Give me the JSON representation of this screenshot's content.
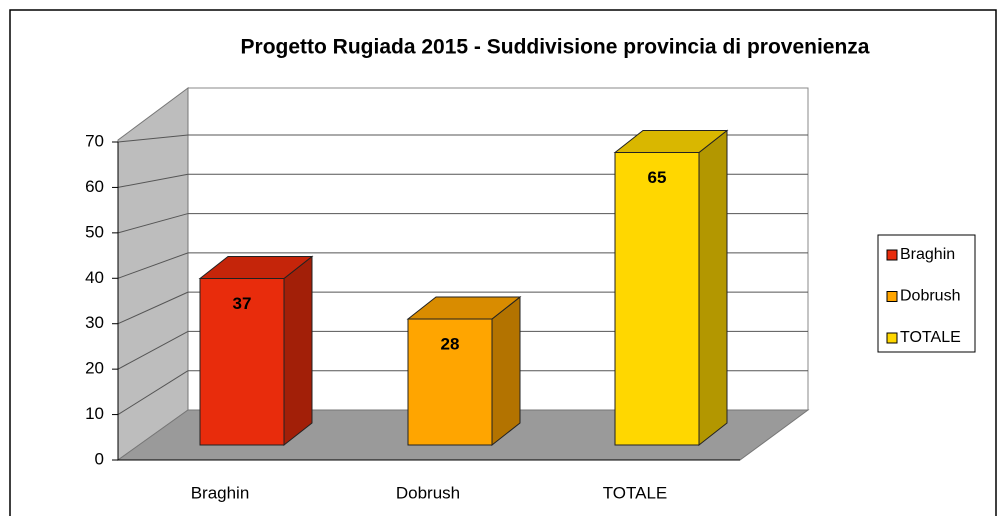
{
  "chart_data": {
    "type": "bar3d",
    "title": "Progetto Rugiada 2015 - Suddivisione provincia di provenienza",
    "categories": [
      "Braghin",
      "Dobrush",
      "TOTALE"
    ],
    "values": [
      37,
      28,
      65
    ],
    "colors": [
      "#e82c0c",
      "#ffa500",
      "#ffd700"
    ],
    "ylim": [
      0,
      70
    ],
    "yticks": [
      0,
      10,
      20,
      30,
      40,
      50,
      60,
      70
    ],
    "grid": true,
    "legend": "right"
  }
}
